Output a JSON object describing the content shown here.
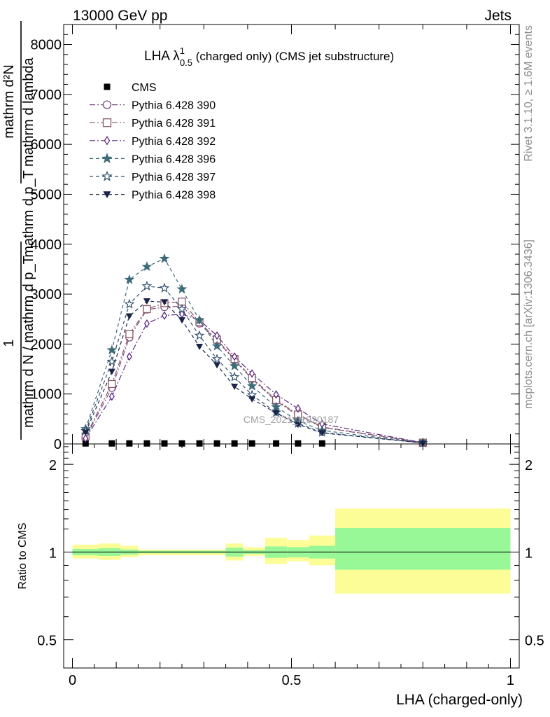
{
  "header": {
    "left": "13000 GeV pp",
    "right": "Jets"
  },
  "side_labels": {
    "rivet": "Rivet 3.1.10, ≥ 1.6M events",
    "mcplots": "mcplots.cern.ch [arXiv:1306.3436]"
  },
  "watermark": "CMS_2021_I1920187",
  "chart_data": [
    {
      "type": "line",
      "title_main": "LHA λ",
      "title_sup": "1",
      "title_sub": "0.5",
      "title_rest": " (charged only) (CMS jet substructure)",
      "ylabel": {
        "numerator": "mathrm d²N",
        "denominator": "mathrm d p_T mathrm d lambda",
        "prefix_top": "1",
        "prefix_bottom": "mathrm d N / mathrm d p_T"
      },
      "ylim": [
        0,
        8400
      ],
      "yticks": [
        0,
        1000,
        2000,
        3000,
        4000,
        5000,
        6000,
        7000,
        8000
      ],
      "ytick_labels": [
        "0",
        "1000",
        "2000",
        "3000",
        "4000",
        "5000",
        "6000",
        "7000",
        "8000"
      ],
      "xlim": [
        -0.02,
        1.02
      ],
      "x": [
        0.03,
        0.09,
        0.13,
        0.17,
        0.21,
        0.25,
        0.29,
        0.33,
        0.37,
        0.41,
        0.465,
        0.515,
        0.57,
        0.8
      ],
      "legend": "top-left",
      "series": [
        {
          "name": "CMS",
          "marker": "square-filled",
          "color": "#000000",
          "dash": "none",
          "values": [
            10,
            10,
            10,
            10,
            10,
            10,
            10,
            10,
            10,
            10,
            10,
            10,
            10,
            null
          ]
        },
        {
          "name": "Pythia 6.428 390",
          "marker": "circle-open",
          "color": "#7a4e80",
          "dash": "8,3,2,3",
          "values": [
            130,
            1120,
            2130,
            2690,
            2740,
            2760,
            2410,
            2070,
            1680,
            1300,
            860,
            570,
            330,
            25
          ]
        },
        {
          "name": "Pythia 6.428 391",
          "marker": "square-open",
          "color": "#8a5565",
          "dash": "8,3,2,3",
          "values": [
            150,
            1200,
            2200,
            2700,
            2820,
            2850,
            2440,
            2090,
            1700,
            1320,
            880,
            590,
            340,
            25
          ]
        },
        {
          "name": "Pythia 6.428 392",
          "marker": "diamond-open",
          "color": "#5a2a80",
          "dash": "8,3,2,3",
          "values": [
            110,
            950,
            1750,
            2410,
            2570,
            2600,
            2480,
            2170,
            1750,
            1410,
            990,
            710,
            400,
            25
          ]
        },
        {
          "name": "Pythia 6.428 396",
          "marker": "star-filled",
          "color": "#3d6b78",
          "dash": "5,4",
          "values": [
            300,
            1880,
            3290,
            3550,
            3710,
            3100,
            2480,
            1960,
            1560,
            1160,
            740,
            460,
            270,
            20
          ]
        },
        {
          "name": "Pythia 6.428 397",
          "marker": "star-open",
          "color": "#2f5070",
          "dash": "5,4",
          "values": [
            260,
            1650,
            2800,
            3160,
            3120,
            2700,
            2170,
            1700,
            1340,
            980,
            630,
            410,
            230,
            20
          ]
        },
        {
          "name": "Pythia 6.428 398",
          "marker": "triangle-down-filled",
          "color": "#1a2448",
          "dash": "5,4",
          "values": [
            230,
            1450,
            2560,
            2860,
            2840,
            2480,
            1950,
            1580,
            1150,
            900,
            620,
            390,
            220,
            20
          ]
        }
      ]
    },
    {
      "type": "area",
      "ylabel": "Ratio to CMS",
      "xlabel": "LHA (charged-only)",
      "ylim": [
        0.4,
        2.35
      ],
      "yscale": "log",
      "yticks": [
        0.5,
        1,
        2
      ],
      "ytick_labels": [
        "0.5",
        "1",
        "2"
      ],
      "xlim": [
        -0.02,
        1.02
      ],
      "xticks": [
        0,
        0.5,
        1
      ],
      "xtick_labels": [
        "0",
        "0.5",
        "1"
      ],
      "reference_line": 1,
      "bands": {
        "edges": [
          0,
          0.06,
          0.11,
          0.15,
          0.35,
          0.39,
          0.44,
          0.49,
          0.54,
          0.6,
          1.0
        ],
        "inner_low": [
          0.975,
          0.97,
          0.98,
          0.99,
          0.965,
          0.985,
          0.955,
          0.96,
          0.95,
          0.87
        ],
        "inner_high": [
          1.025,
          1.03,
          1.02,
          1.01,
          1.035,
          1.015,
          1.045,
          1.04,
          1.05,
          1.21
        ],
        "outer_low": [
          0.95,
          0.94,
          0.96,
          0.975,
          0.935,
          0.97,
          0.91,
          0.93,
          0.9,
          0.72
        ],
        "outer_high": [
          1.06,
          1.07,
          1.05,
          1.02,
          1.07,
          1.04,
          1.12,
          1.1,
          1.14,
          1.41
        ],
        "inner_color": "#98f898",
        "outer_color": "#fdfd98"
      }
    }
  ]
}
